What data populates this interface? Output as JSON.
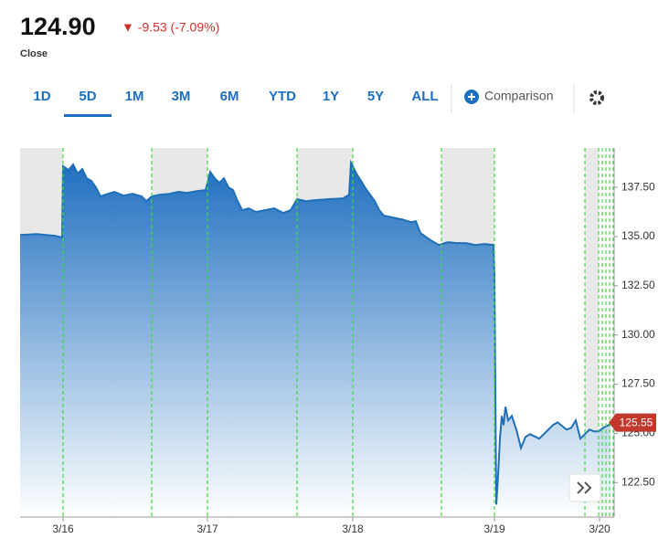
{
  "header": {
    "price": "124.90",
    "change": "▼ -9.53 (-7.09%)",
    "status": "Close"
  },
  "tabs": [
    "1D",
    "5D",
    "1M",
    "3M",
    "6M",
    "YTD",
    "1Y",
    "5Y",
    "ALL"
  ],
  "active_tab": 1,
  "comparison": "Comparison",
  "chart_data": {
    "type": "area",
    "x": [
      0,
      18,
      38,
      46,
      47,
      53,
      58,
      63,
      68,
      73,
      78,
      83,
      88,
      96,
      103,
      113,
      123,
      133,
      138,
      144,
      153,
      163,
      173,
      183,
      193,
      203,
      208,
      213,
      218,
      223,
      228,
      233,
      238,
      243,
      250,
      258,
      268,
      278,
      288,
      296,
      303,
      313,
      323,
      338,
      353,
      360,
      362,
      368,
      373,
      378,
      388,
      393,
      398,
      408,
      418,
      428,
      433,
      438,
      448,
      458,
      468,
      478,
      488,
      498,
      508,
      518,
      519,
      521,
      523,
      525,
      527,
      529,
      531,
      534,
      538,
      543,
      548,
      553,
      558,
      568,
      578,
      583,
      588,
      598,
      603,
      608,
      613,
      618,
      623,
      628,
      633,
      638,
      646
    ],
    "values": [
      135.08,
      135.13,
      135.04,
      134.95,
      138.57,
      138.38,
      138.66,
      138.2,
      138.43,
      137.96,
      137.83,
      137.5,
      137.04,
      137.17,
      137.27,
      137.08,
      137.17,
      137.04,
      136.8,
      137.04,
      137.13,
      137.17,
      137.27,
      137.22,
      137.31,
      137.36,
      138.29,
      137.96,
      137.73,
      137.96,
      137.5,
      137.36,
      136.8,
      136.34,
      136.43,
      136.25,
      136.34,
      136.43,
      136.2,
      136.34,
      136.9,
      136.8,
      136.85,
      136.9,
      136.94,
      137.13,
      138.75,
      138.2,
      137.83,
      137.45,
      136.8,
      136.34,
      136.06,
      135.97,
      135.87,
      135.73,
      135.78,
      135.18,
      134.85,
      134.57,
      134.71,
      134.67,
      134.67,
      134.57,
      134.62,
      134.57,
      133.09,
      121.38,
      122.87,
      124.73,
      125.89,
      125.42,
      126.35,
      125.66,
      125.89,
      125.19,
      124.26,
      124.82,
      124.96,
      124.73,
      125.19,
      125.42,
      125.56,
      125.19,
      125.28,
      125.66,
      124.73,
      124.96,
      125.19,
      125.1,
      125.1,
      125.28,
      125.47
    ],
    "color": "#1f6fb8",
    "last_value": 125.55,
    "last_value_label": "125.55",
    "xlim": [
      0,
      650
    ],
    "xticks": [
      {
        "value": 47,
        "label": "3/16"
      },
      {
        "value": 205,
        "label": "3/17"
      },
      {
        "value": 364,
        "label": "3/18"
      },
      {
        "value": 519,
        "label": "3/19"
      },
      {
        "value": 634,
        "label": "3/20"
      }
    ],
    "ylim": [
      120.75,
      139.5
    ],
    "yticks": [
      {
        "value": 122.5,
        "label": "122.50"
      },
      {
        "value": 125,
        "label": "125.00"
      },
      {
        "value": 127.5,
        "label": "127.50"
      },
      {
        "value": 130,
        "label": "130.00"
      },
      {
        "value": 132.5,
        "label": "132.50"
      },
      {
        "value": 135,
        "label": "135.00"
      },
      {
        "value": 137.5,
        "label": "137.50"
      }
    ],
    "shaded_ranges": [
      [
        0,
        47
      ],
      [
        144,
        205
      ],
      [
        303,
        364
      ],
      [
        461,
        519
      ],
      [
        618,
        633
      ]
    ],
    "session_lines": [
      47,
      144,
      205,
      303,
      364,
      461,
      519,
      618,
      633,
      637,
      641,
      645,
      649
    ]
  }
}
